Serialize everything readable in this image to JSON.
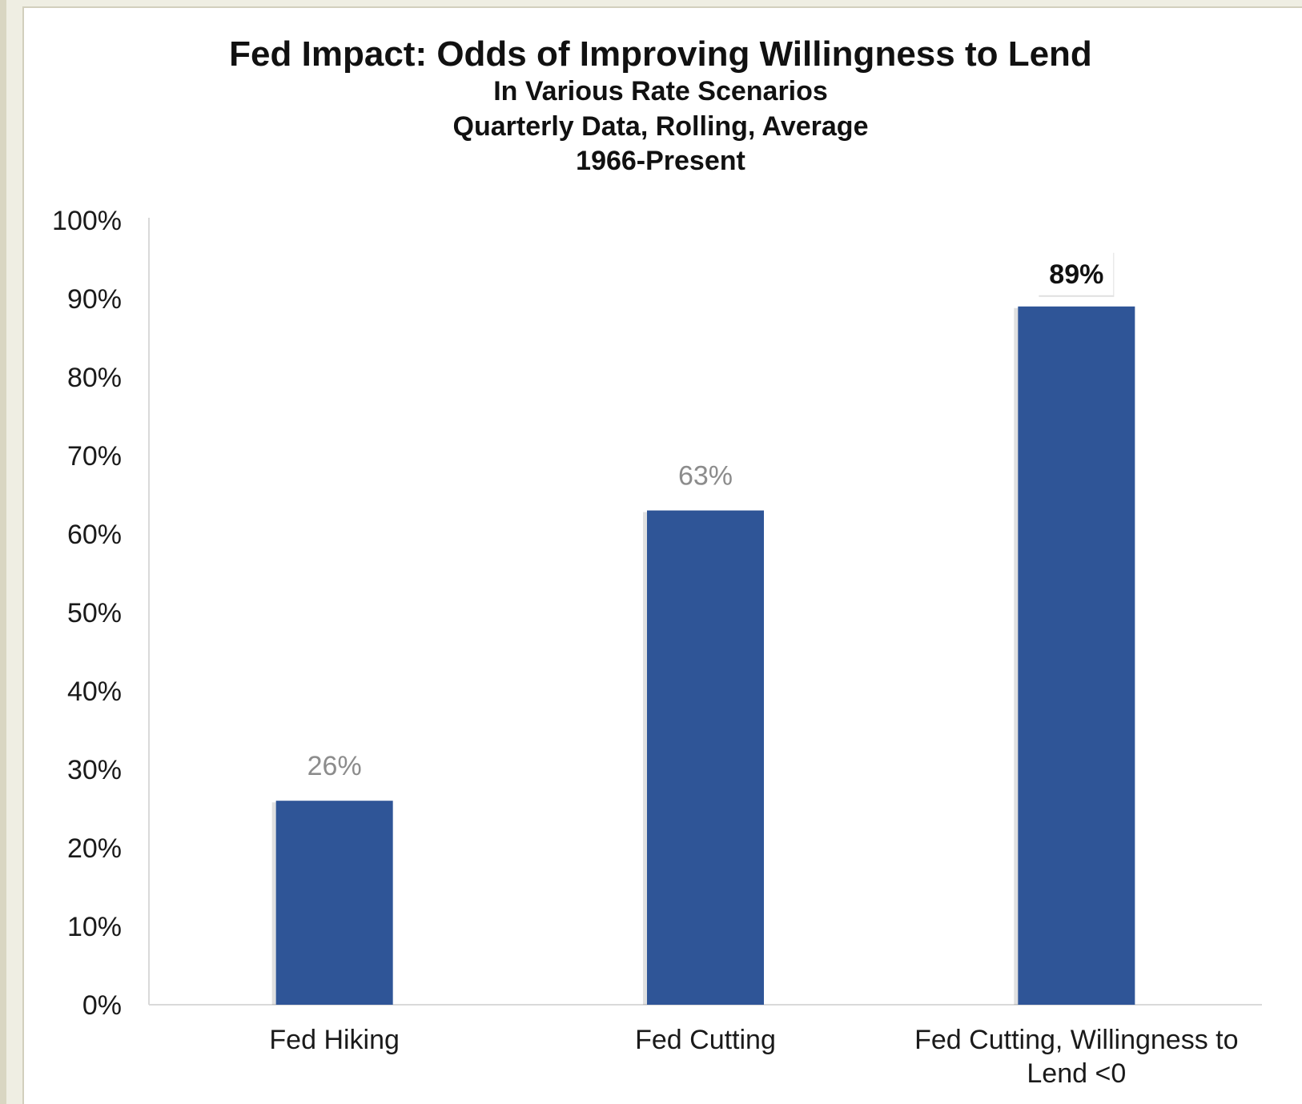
{
  "chart_data": {
    "type": "bar",
    "title": "Fed Impact: Odds of Improving Willingness to Lend",
    "subtitle_lines": [
      "In Various Rate Scenarios",
      "Quarterly Data, Rolling, Average",
      "1966-Present"
    ],
    "categories": [
      [
        "Fed Hiking"
      ],
      [
        "Fed Cutting"
      ],
      [
        "Fed Cutting, Willingness to",
        "Lend <0"
      ]
    ],
    "values": [
      26,
      63,
      89
    ],
    "value_labels": [
      "26%",
      "63%",
      "89%"
    ],
    "highlight_index": 2,
    "ylim": [
      0,
      100
    ],
    "ytick_labels": [
      "0%",
      "10%",
      "20%",
      "30%",
      "40%",
      "50%",
      "60%",
      "70%",
      "80%",
      "90%",
      "100%"
    ],
    "bar_color": "#2f5597",
    "label_color": "#8c8c8c",
    "highlight_label_color": "#111111",
    "grid": false,
    "legend": "none"
  }
}
